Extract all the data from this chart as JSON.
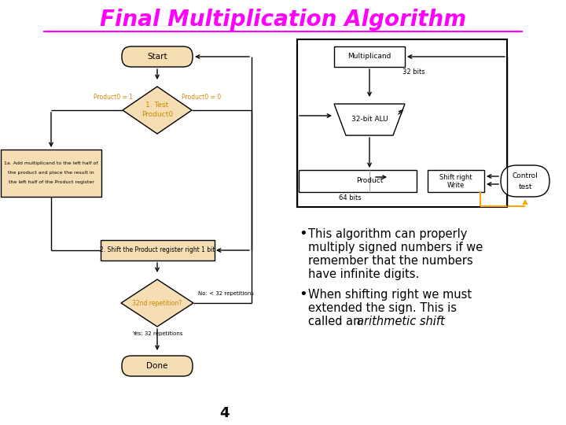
{
  "title": "Final Multiplication Algorithm",
  "title_color": "#FF00FF",
  "bg_color": "#FFFFFF",
  "bullet1_line1": "This algorithm can properly",
  "bullet1_line2": "multiply signed numbers if we",
  "bullet1_line3": "remember that the numbers",
  "bullet1_line4": "have infinite digits.",
  "bullet2_line1": "When shifting right we must",
  "bullet2_line2": "extended the sign. This is",
  "bullet2_line3_normal": "called an ",
  "bullet2_line3_italic": "arithmetic shift",
  "bullet2_line3_end": ".",
  "page_num": "4",
  "box_fill": "#F5DEB3",
  "orange": "#CC8800",
  "orange_line": "#FFA500",
  "start_label": "Start",
  "d1_label1": "1. Test",
  "d1_label2": "Product0",
  "d1_left": "Product0 = 1",
  "d1_right": "Product0 = 0",
  "box1a_l1": "1a. Add multiplicand to the left half of",
  "box1a_l2": "the product and place the result in",
  "box1a_l3": "the left half of the Product register",
  "box2_label": "2. Shift the Product register right 1 bit",
  "d2_label": "32nd repetition?",
  "d2_no": "No: < 32 repetitions",
  "d2_yes": "Yes: 32 repetitions",
  "done_label": "Done",
  "multiplicand_label": "Multiplicand",
  "bits32_label": "32 bits",
  "alu_label": "32-bit ALU",
  "product_label": "Product",
  "shiftright_l1": "Shift right",
  "shiftright_l2": "Write",
  "control_l1": "Control",
  "control_l2": "test",
  "bits64_label": "64 bits"
}
